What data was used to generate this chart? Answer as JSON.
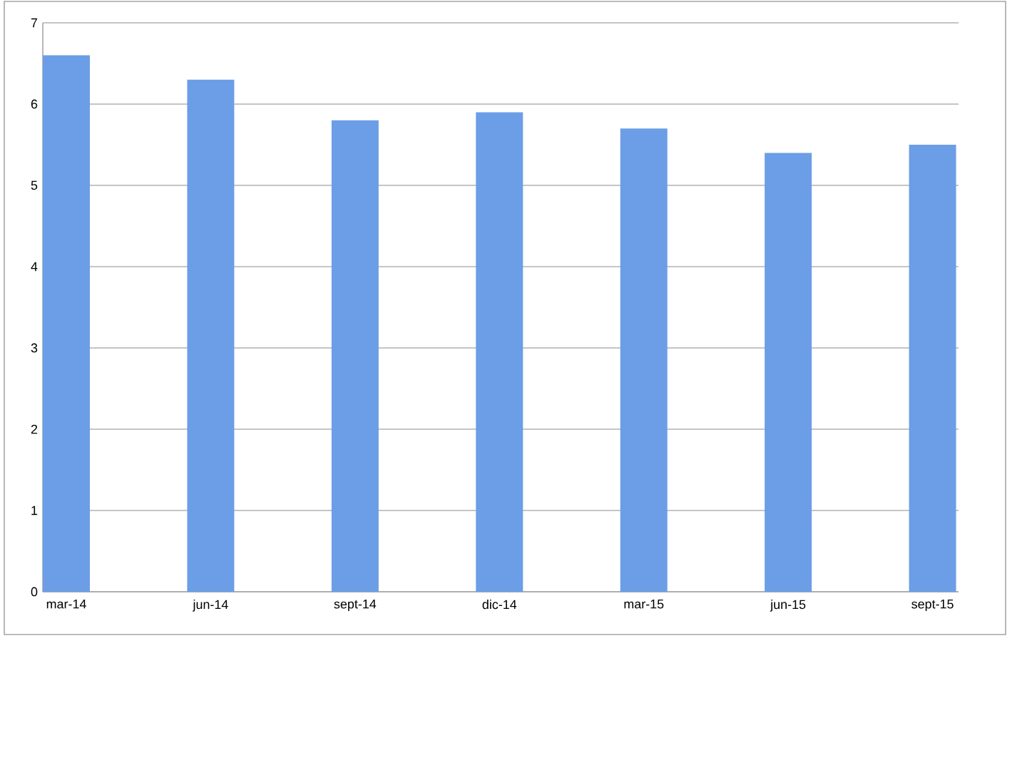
{
  "chart_data": {
    "type": "bar",
    "categories": [
      "mar-14",
      "jun-14",
      "sept-14",
      "dic-14",
      "mar-15",
      "jun-15",
      "sept-15"
    ],
    "values": [
      6.6,
      6.3,
      5.8,
      5.9,
      5.7,
      5.4,
      5.5
    ],
    "color": "#6b9ee6",
    "ylim": [
      0,
      7
    ],
    "yticks": [
      0,
      1,
      2,
      3,
      4,
      5,
      6,
      7
    ],
    "grid": "y"
  }
}
